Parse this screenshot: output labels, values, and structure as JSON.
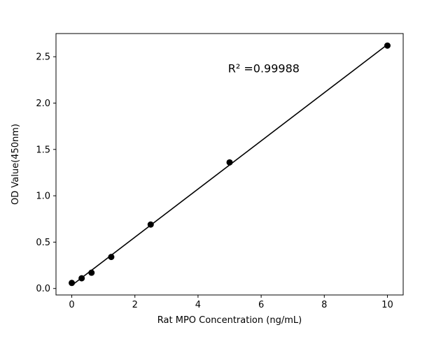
{
  "chart_data": {
    "type": "scatter",
    "title": "",
    "xlabel": "Rat MPO Concentration (ng/mL)",
    "ylabel": "OD Value(450nm)",
    "annotation": {
      "text": "R² =0.99988",
      "x": 4.95,
      "y": 2.33
    },
    "x": [
      0,
      0.313,
      0.625,
      1.25,
      2.5,
      5,
      10
    ],
    "y": [
      0.06,
      0.11,
      0.17,
      0.34,
      0.69,
      1.36,
      2.62
    ],
    "fit_line": true,
    "xlim": [
      -0.5,
      10.5
    ],
    "ylim": [
      -0.07,
      2.75
    ],
    "xticks": [
      0,
      2,
      4,
      6,
      8,
      10
    ],
    "xtick_labels": [
      "0",
      "2",
      "4",
      "6",
      "8",
      "10"
    ],
    "yticks": [
      0.0,
      0.5,
      1.0,
      1.5,
      2.0,
      2.5
    ],
    "ytick_labels": [
      "0.0",
      "0.5",
      "1.0",
      "1.5",
      "2.0",
      "2.5"
    ],
    "marker_color": "#000000",
    "line_color": "#000000",
    "axis_color": "#000000",
    "background": "#ffffff",
    "grid": false,
    "legend": "none"
  }
}
